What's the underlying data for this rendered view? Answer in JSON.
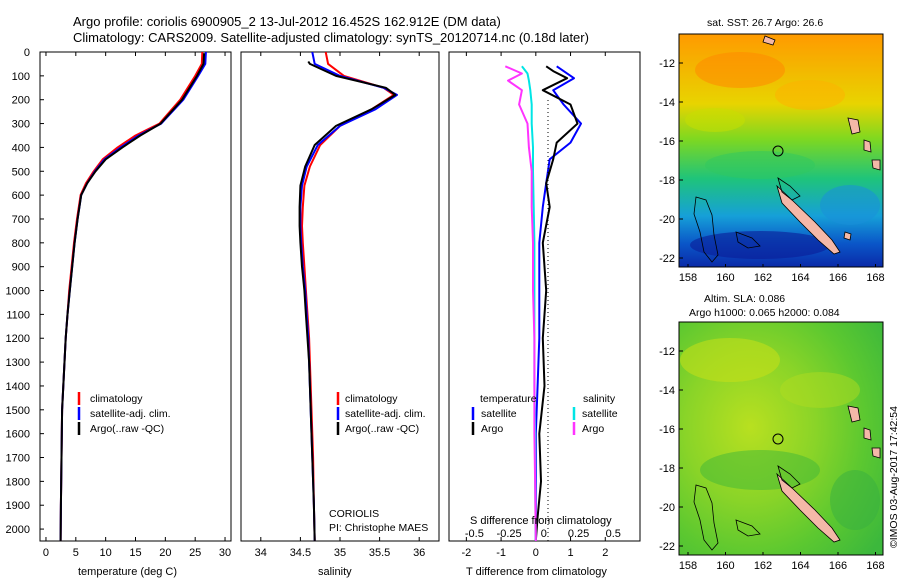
{
  "header": {
    "line1": "Argo profile: coriolis 6900905_2 13-Jul-2012 16.452S 162.912E (DM data)",
    "line2": "Climatology: CARS2009. Satellite-adjusted climatology: synTS_20120714.nc (0.18d later)"
  },
  "colors": {
    "climatology": "#ff0000",
    "satellite": "#0000ff",
    "argo": "#000000",
    "cyan": "#00e5e5",
    "magenta": "#ff33ff"
  },
  "depth_ticks": [
    "0",
    "100",
    "200",
    "300",
    "400",
    "500",
    "600",
    "700",
    "800",
    "900",
    "1000",
    "1100",
    "1200",
    "1300",
    "1400",
    "1500",
    "1600",
    "1700",
    "1800",
    "1900",
    "2000"
  ],
  "chart_data": [
    {
      "id": "temperature",
      "type": "line",
      "xlabel": "temperature (deg C)",
      "ylabel": "",
      "xlim": [
        -1,
        31
      ],
      "ylim": [
        2050,
        0
      ],
      "xticks": [
        "0",
        "5",
        "10",
        "15",
        "20",
        "25",
        "30"
      ],
      "legend": {
        "position": "lower-middle",
        "entries": [
          "climatology",
          "satellite-adj. clim.",
          "Argo(..raw -QC)"
        ]
      },
      "series": [
        {
          "name": "climatology",
          "x": [
            26.2,
            26.1,
            25.0,
            22.5,
            19.0,
            15.0,
            12.0,
            9.5,
            8.0,
            6.7,
            5.8,
            5.2,
            4.7,
            4.3,
            3.9,
            3.6,
            3.3,
            3.1,
            2.9,
            2.7,
            2.6,
            2.5,
            2.45
          ],
          "y": [
            0,
            50,
            100,
            200,
            300,
            350,
            400,
            450,
            500,
            550,
            600,
            700,
            800,
            900,
            1000,
            1100,
            1200,
            1300,
            1400,
            1500,
            1700,
            1900,
            2050
          ]
        },
        {
          "name": "satellite-adj. clim.",
          "x": [
            26.8,
            26.7,
            25.5,
            23.0,
            19.3,
            15.5,
            12.5,
            9.8,
            8.2,
            6.9,
            5.9,
            5.3,
            4.8,
            4.4,
            4.0,
            3.6,
            3.3,
            3.1,
            2.9,
            2.7,
            2.6,
            2.5,
            2.45
          ],
          "y": [
            0,
            50,
            100,
            200,
            300,
            350,
            400,
            450,
            500,
            550,
            600,
            700,
            800,
            900,
            1000,
            1100,
            1200,
            1300,
            1400,
            1500,
            1700,
            1900,
            2050
          ]
        },
        {
          "name": "Argo(..raw -QC)",
          "x": [
            26.5,
            26.4,
            25.3,
            22.8,
            19.2,
            15.8,
            12.8,
            10.0,
            8.3,
            6.9,
            5.9,
            5.3,
            4.8,
            4.4,
            4.0,
            3.6,
            3.3,
            3.1,
            2.9,
            2.7,
            2.6,
            2.5,
            2.45
          ],
          "y": [
            5,
            50,
            100,
            200,
            300,
            350,
            400,
            450,
            500,
            550,
            600,
            700,
            800,
            900,
            1000,
            1100,
            1200,
            1300,
            1400,
            1500,
            1700,
            1900,
            2050
          ]
        }
      ]
    },
    {
      "id": "salinity",
      "type": "line",
      "xlabel": "salinity",
      "ylabel": "",
      "xlim": [
        33.75,
        36.25
      ],
      "ylim": [
        2050,
        0
      ],
      "xticks": [
        "34",
        "34.5",
        "35",
        "35.5",
        "36"
      ],
      "legend": {
        "position": "lower-right",
        "entries": [
          "climatology",
          "satellite-adj. clim.",
          "Argo(..raw -QC)"
        ]
      },
      "annotation": {
        "line1": "CORIOLIS",
        "line2": "PI: Christophe MAES"
      },
      "series": [
        {
          "name": "climatology",
          "x": [
            34.82,
            34.85,
            35.05,
            35.55,
            35.68,
            35.4,
            35.0,
            34.75,
            34.62,
            34.55,
            34.53,
            34.52,
            34.53,
            34.55,
            34.57,
            34.59,
            34.61,
            34.62,
            34.63,
            34.64,
            34.66,
            34.67,
            34.68
          ],
          "y": [
            0,
            50,
            100,
            150,
            180,
            240,
            310,
            390,
            480,
            560,
            650,
            730,
            800,
            900,
            1000,
            1100,
            1200,
            1300,
            1400,
            1500,
            1700,
            1900,
            2050
          ]
        },
        {
          "name": "satellite-adj. clim.",
          "x": [
            34.65,
            34.68,
            35.0,
            35.55,
            35.72,
            35.45,
            35.0,
            34.72,
            34.58,
            34.52,
            34.5,
            34.5,
            34.51,
            34.53,
            34.56,
            34.58,
            34.6,
            34.61,
            34.62,
            34.63,
            34.65,
            34.67,
            34.68
          ],
          "y": [
            0,
            50,
            100,
            150,
            180,
            240,
            310,
            390,
            480,
            560,
            650,
            730,
            800,
            900,
            1000,
            1100,
            1200,
            1300,
            1400,
            1500,
            1700,
            1900,
            2050
          ]
        },
        {
          "name": "Argo(..raw -QC)",
          "x": [
            34.6,
            34.62,
            34.95,
            35.58,
            35.7,
            35.4,
            34.95,
            34.68,
            34.56,
            34.5,
            34.49,
            34.49,
            34.5,
            34.52,
            34.55,
            34.57,
            34.59,
            34.61,
            34.62,
            34.63,
            34.65,
            34.67,
            34.68
          ],
          "y": [
            40,
            50,
            100,
            150,
            180,
            240,
            310,
            390,
            480,
            560,
            650,
            730,
            800,
            900,
            1000,
            1100,
            1200,
            1300,
            1400,
            1500,
            1700,
            1900,
            2050
          ]
        }
      ]
    },
    {
      "id": "difference",
      "type": "line",
      "xlabel_top": "S difference from climatology",
      "xlabel": "T difference from climatology",
      "xlim": [
        -2.5,
        3.0
      ],
      "ylim": [
        2050,
        0
      ],
      "xticks": [
        "-2",
        "-1",
        "0",
        "1",
        "2"
      ],
      "xticks_top": [
        "-0.5",
        "-0.25",
        "0",
        "0.25",
        "0.5"
      ],
      "legend": {
        "position": "lower-middle",
        "temperature": {
          "header": "temperature",
          "entries": [
            "satellite",
            "Argo"
          ]
        },
        "salinity": {
          "header": "salinity",
          "entries": [
            "satellite",
            "Argo"
          ]
        }
      },
      "series": [
        {
          "name": "T satellite",
          "x": [
            0.6,
            0.8,
            1.1,
            0.5,
            0.8,
            1.3,
            1.0,
            0.4,
            0.3,
            0.2,
            0.1,
            0.1,
            0.1,
            0.05,
            0.0,
            0.0,
            0.0,
            0.0
          ],
          "y": [
            60,
            80,
            110,
            160,
            220,
            300,
            380,
            450,
            550,
            650,
            800,
            1000,
            1200,
            1400,
            1600,
            1800,
            1950,
            2050
          ]
        },
        {
          "name": "T Argo",
          "x": [
            0.3,
            0.5,
            0.9,
            0.2,
            1.0,
            1.2,
            0.6,
            0.5,
            0.3,
            0.4,
            0.2,
            0.3,
            0.2,
            0.25,
            0.1,
            0.15,
            0.05,
            0.0
          ],
          "y": [
            60,
            80,
            110,
            160,
            220,
            300,
            380,
            450,
            550,
            650,
            800,
            1000,
            1200,
            1400,
            1600,
            1800,
            1950,
            2050
          ]
        },
        {
          "name": "S satellite",
          "x": [
            -0.1,
            -0.06,
            -0.05,
            -0.04,
            -0.03,
            -0.03,
            -0.02,
            -0.02,
            -0.015,
            -0.01,
            -0.01,
            -0.01,
            -0.01,
            -0.005,
            -0.005,
            0.0
          ],
          "y": [
            60,
            90,
            120,
            160,
            220,
            300,
            400,
            500,
            650,
            800,
            1000,
            1200,
            1400,
            1600,
            1800,
            2050
          ]
        },
        {
          "name": "S Argo",
          "x": [
            -0.22,
            -0.1,
            -0.2,
            -0.1,
            -0.12,
            -0.06,
            -0.05,
            -0.03,
            -0.03,
            -0.02,
            -0.02,
            -0.01,
            -0.01,
            -0.01,
            -0.005,
            0.0
          ],
          "y": [
            60,
            90,
            120,
            160,
            220,
            300,
            400,
            500,
            650,
            800,
            1000,
            1200,
            1400,
            1600,
            1800,
            2050
          ]
        }
      ]
    }
  ],
  "maps": [
    {
      "id": "sst-map",
      "title": "sat. SST: 26.7 Argo: 26.6",
      "yticks": [
        "-12",
        "-14",
        "-16",
        "-18",
        "-20",
        "-22"
      ],
      "xticks": [
        "158",
        "160",
        "162",
        "164",
        "166",
        "168"
      ]
    },
    {
      "id": "sla-map",
      "title_line1": "Altim. SLA: 0.086",
      "title_line2": "Argo h1000: 0.065 h2000: 0.084",
      "yticks": [
        "-12",
        "-14",
        "-16",
        "-18",
        "-20",
        "-22"
      ],
      "xticks": [
        "158",
        "160",
        "162",
        "164",
        "166",
        "168"
      ]
    }
  ],
  "side_label": "©IMOS 03-Aug-2017 17:42:54"
}
